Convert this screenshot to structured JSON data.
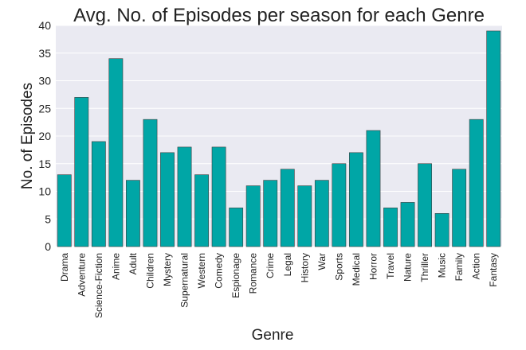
{
  "chart_data": {
    "type": "bar",
    "title": "Avg. No. of Episodes per season for each Genre",
    "xlabel": "Genre",
    "ylabel": "No. of Episodes",
    "ylim": [
      0,
      40
    ],
    "yticks": [
      0,
      5,
      10,
      15,
      20,
      25,
      30,
      35,
      40
    ],
    "grid": true,
    "legend": "none",
    "colors": {
      "bar": "#00a6a6",
      "plot_background": "#eaeaf2",
      "grid": "#ffffff"
    },
    "categories": [
      "Drama",
      "Adventure",
      "Science-Fiction",
      "Anime",
      "Adult",
      "Children",
      "Mystery",
      "Supernatural",
      "Western",
      "Comedy",
      "Espionage",
      "Romance",
      "Crime",
      "Legal",
      "History",
      "War",
      "Sports",
      "Medical",
      "Horror",
      "Travel",
      "Nature",
      "Thriller",
      "Music",
      "Family",
      "Action",
      "Fantasy"
    ],
    "values": [
      13,
      27,
      19,
      34,
      12,
      23,
      17,
      18,
      13,
      18,
      7,
      11,
      12,
      14,
      11,
      12,
      15,
      17,
      21,
      7,
      8,
      15,
      6,
      14,
      23,
      39
    ]
  }
}
